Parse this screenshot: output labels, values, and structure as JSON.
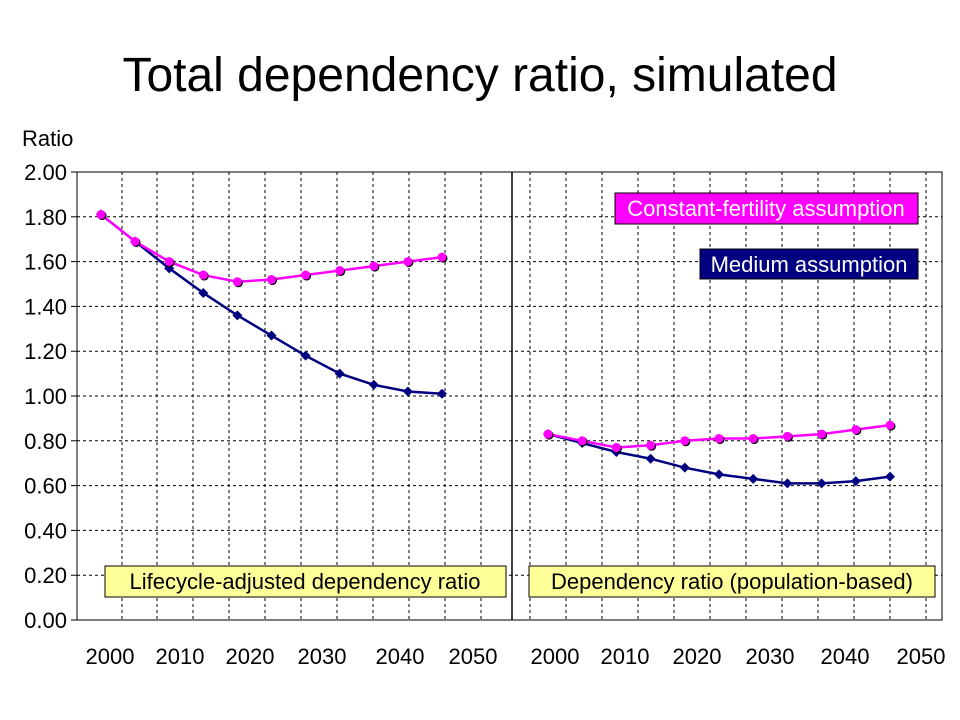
{
  "title": "Total dependency ratio, simulated",
  "chart_data": {
    "type": "line",
    "title": "Total dependency ratio, simulated",
    "ylabel": "Ratio",
    "ylim": [
      0,
      2
    ],
    "yticks": [
      "0.00",
      "0.20",
      "0.40",
      "0.60",
      "0.80",
      "1.00",
      "1.20",
      "1.40",
      "1.60",
      "1.80",
      "2.00"
    ],
    "xtick_labels": [
      "2000",
      "2010",
      "2020",
      "2030",
      "2040",
      "2050"
    ],
    "grid": true,
    "legend": [
      {
        "label": "Constant-fertility assumption",
        "color": "#FF00FF"
      },
      {
        "label": "Medium assumption",
        "color": "#000080"
      }
    ],
    "colors": {
      "constant": "#FF00FF",
      "medium": "#000080",
      "label_box": "#FFFF99"
    },
    "panels": [
      {
        "label": "Lifecycle-adjusted dependency ratio",
        "x": [
          2000,
          2005,
          2010,
          2015,
          2020,
          2025,
          2030,
          2035,
          2040,
          2045,
          2050
        ],
        "series": [
          {
            "name": "Constant-fertility assumption",
            "values": [
              1.81,
              1.69,
              1.6,
              1.54,
              1.51,
              1.52,
              1.54,
              1.56,
              1.58,
              1.6,
              1.62
            ]
          },
          {
            "name": "Medium assumption",
            "values": [
              1.81,
              1.69,
              1.57,
              1.46,
              1.36,
              1.27,
              1.18,
              1.1,
              1.05,
              1.02,
              1.01
            ]
          }
        ]
      },
      {
        "label": "Dependency ratio (population-based)",
        "x": [
          2000,
          2005,
          2010,
          2015,
          2020,
          2025,
          2030,
          2035,
          2040,
          2045,
          2050
        ],
        "series": [
          {
            "name": "Constant-fertility assumption",
            "values": [
              0.83,
              0.8,
              0.77,
              0.78,
              0.8,
              0.81,
              0.81,
              0.82,
              0.83,
              0.85,
              0.87
            ]
          },
          {
            "name": "Medium assumption",
            "values": [
              0.83,
              0.79,
              0.75,
              0.72,
              0.68,
              0.65,
              0.63,
              0.61,
              0.61,
              0.62,
              0.64
            ]
          }
        ]
      }
    ]
  }
}
